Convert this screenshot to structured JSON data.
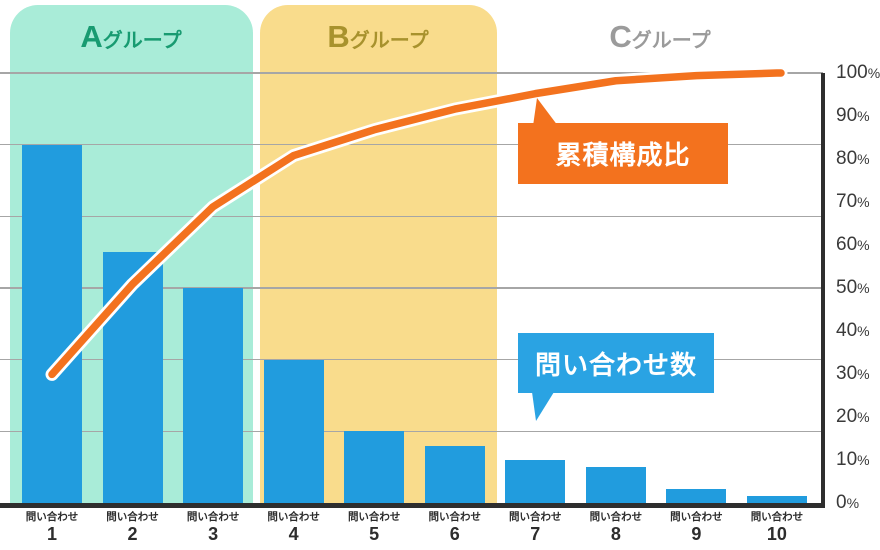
{
  "chart_data": {
    "type": "bar",
    "subtype": "pareto",
    "categories": [
      {
        "label": "問い合わせ",
        "number": "1"
      },
      {
        "label": "問い合わせ",
        "number": "2"
      },
      {
        "label": "問い合わせ",
        "number": "3"
      },
      {
        "label": "問い合わせ",
        "number": "4"
      },
      {
        "label": "問い合わせ",
        "number": "5"
      },
      {
        "label": "問い合わせ",
        "number": "6"
      },
      {
        "label": "問い合わせ",
        "number": "7"
      },
      {
        "label": "問い合わせ",
        "number": "8"
      },
      {
        "label": "問い合わせ",
        "number": "9"
      },
      {
        "label": "問い合わせ",
        "number": "10"
      }
    ],
    "series": [
      {
        "name": "問い合わせ数",
        "type": "bar",
        "axis": "left-hidden",
        "color": "#219CDE",
        "values_units": [
          50,
          35,
          30,
          20,
          10,
          8,
          6,
          5,
          2,
          1
        ]
      },
      {
        "name": "累積構成比",
        "type": "line",
        "axis": "right",
        "color": "#F3721E",
        "outline_color": "#FFFFFF",
        "cumulative_pct": [
          29.9,
          50.9,
          68.9,
          80.8,
          86.8,
          91.6,
          95.2,
          98.2,
          99.4,
          100
        ]
      }
    ],
    "left_axis": {
      "labels_visible": false,
      "max_units": 60,
      "gridlines_every_units": 10
    },
    "right_axis": {
      "unit": "%",
      "min": 0,
      "max": 100,
      "tick_step": 10,
      "tick_values": [
        100,
        90,
        80,
        70,
        60,
        50,
        40,
        30,
        20,
        10,
        0
      ]
    },
    "zones": [
      {
        "label": "Aグループ",
        "letter": "A",
        "suffix": "グループ",
        "bars": "1-3",
        "background": "#A9ECD8",
        "text_color": "#189B71"
      },
      {
        "label": "Bグループ",
        "letter": "B",
        "suffix": "グループ",
        "bars": "4-6",
        "background": "#F9DC8C",
        "text_color": "#A8922D"
      },
      {
        "label": "Cグループ",
        "letter": "C",
        "suffix": "グループ",
        "bars": "7-10",
        "background": "none",
        "text_color": "#9B9B9B"
      }
    ],
    "callouts": [
      {
        "text": "累積構成比",
        "color": "#F3721E"
      },
      {
        "text": "問い合わせ数",
        "color": "#2AA3E3"
      }
    ],
    "gridline_color": "#A6A6A6",
    "axis_color": "#2E2E2E",
    "tick_text_color": "#3A3A3A",
    "category_text_color": "#2D2D2D"
  }
}
